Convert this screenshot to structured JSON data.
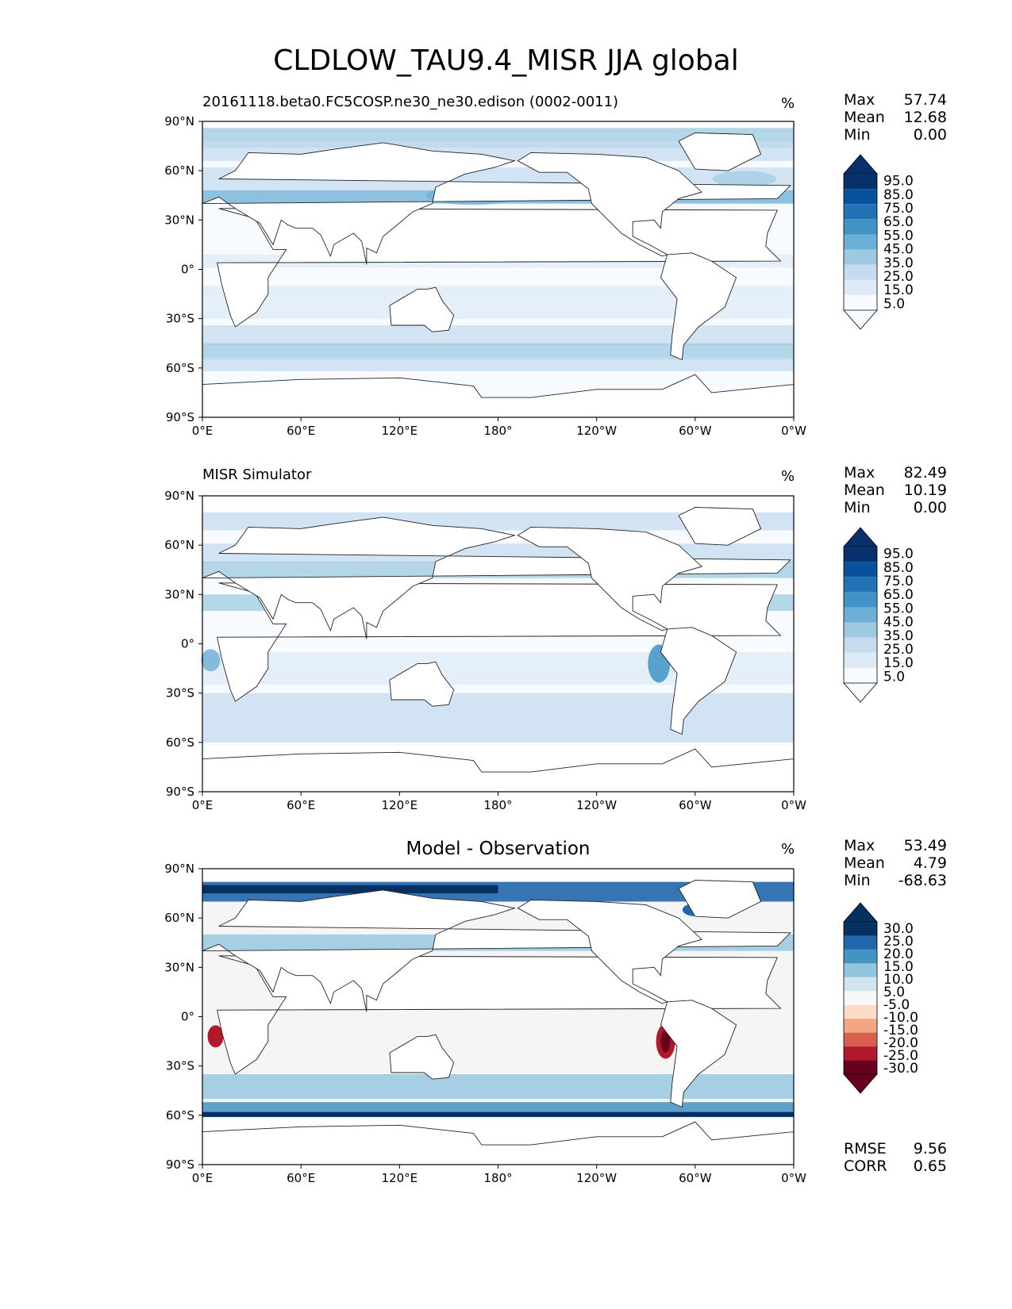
{
  "title": "CLDLOW_TAU9.4_MISR JJA global",
  "unit": "%",
  "lat_ticks": [
    "90°N",
    "60°N",
    "30°N",
    "0°",
    "30°S",
    "60°S",
    "90°S"
  ],
  "lon_ticks": [
    "0°E",
    "60°E",
    "120°E",
    "180°",
    "120°W",
    "60°W",
    "0°W"
  ],
  "colors": {
    "seq": [
      "#f7fbff",
      "#deebf7",
      "#c6dbef",
      "#9ecae1",
      "#6baed6",
      "#4292c6",
      "#2171b5",
      "#08519c",
      "#08306b"
    ],
    "div": [
      "#67001f",
      "#b2182b",
      "#d6604d",
      "#f4a582",
      "#fddbc7",
      "#f7f7f7",
      "#d1e5f0",
      "#92c5de",
      "#4393c3",
      "#2166ac",
      "#053061"
    ]
  },
  "chart_data": [
    {
      "type": "heatmap",
      "title": "20161118.beta0.FC5COSP.ne30_ne30.edison (0002-0011)",
      "units": "%",
      "stats": {
        "max_label": "Max",
        "max": "57.74",
        "mean_label": "Mean",
        "mean": "12.68",
        "min_label": "Min",
        "min": "0.00"
      },
      "colorbar_levels": [
        "95.0",
        "85.0",
        "75.0",
        "65.0",
        "55.0",
        "45.0",
        "35.0",
        "25.0",
        "15.0",
        "5.0"
      ],
      "xlim": [
        0,
        360
      ],
      "ylim": [
        -90,
        90
      ]
    },
    {
      "type": "heatmap",
      "title": "MISR Simulator",
      "units": "%",
      "stats": {
        "max_label": "Max",
        "max": "82.49",
        "mean_label": "Mean",
        "mean": "10.19",
        "min_label": "Min",
        "min": "0.00"
      },
      "colorbar_levels": [
        "95.0",
        "85.0",
        "75.0",
        "65.0",
        "55.0",
        "45.0",
        "35.0",
        "25.0",
        "15.0",
        "5.0"
      ],
      "xlim": [
        0,
        360
      ],
      "ylim": [
        -90,
        90
      ]
    },
    {
      "type": "heatmap",
      "title": "Model - Observation",
      "units": "%",
      "stats": {
        "max_label": "Max",
        "max": "53.49",
        "mean_label": "Mean",
        "mean": "4.79",
        "min_label": "Min",
        "min": "-68.63",
        "rmse_label": "RMSE",
        "rmse": "9.56",
        "corr_label": "CORR",
        "corr": "0.65"
      },
      "colorbar_levels": [
        "30.0",
        "25.0",
        "20.0",
        "15.0",
        "10.0",
        "5.0",
        "-5.0",
        "-10.0",
        "-15.0",
        "-20.0",
        "-25.0",
        "-30.0"
      ],
      "xlim": [
        0,
        360
      ],
      "ylim": [
        -90,
        90
      ]
    }
  ]
}
